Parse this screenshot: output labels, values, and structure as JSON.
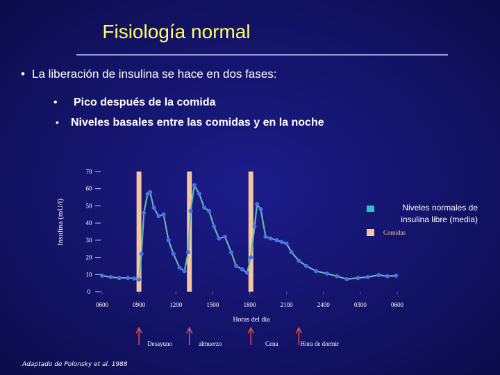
{
  "title": "Fisiología normal",
  "bullets": [
    "La liberación de insulina se hace en dos fases:",
    "Pico después de la comida",
    "Niveles basales entre las comidas y en la noche"
  ],
  "citation": "Adaptado de Polonsky et al. 1988",
  "chart_data": {
    "type": "line",
    "ylabel": "Insulina (mU/l)",
    "xlabel": "Horas del día",
    "ylim": [
      0,
      70
    ],
    "yticks": [
      0,
      10,
      20,
      30,
      40,
      50,
      60,
      70
    ],
    "xlim": [
      6,
      30
    ],
    "xticks": [
      {
        "value": 6,
        "label": "0600"
      },
      {
        "value": 9,
        "label": "0900"
      },
      {
        "value": 12,
        "label": "1200"
      },
      {
        "value": 15,
        "label": "1500"
      },
      {
        "value": 18,
        "label": "1800"
      },
      {
        "value": 21,
        "label": "2100"
      },
      {
        "value": 24,
        "label": "2400"
      },
      {
        "value": 27,
        "label": "0300"
      },
      {
        "value": 30,
        "label": "0600"
      }
    ],
    "series": [
      {
        "name": "Niveles normales de insulina libre (media)",
        "color": "#2ec4c4",
        "line_color": "#66b8a6",
        "point_color": "#4a6fe8",
        "x": [
          6.0,
          6.7,
          7.4,
          8.1,
          8.6,
          9.0,
          9.2,
          9.4,
          9.7,
          9.9,
          10.2,
          10.6,
          11.0,
          11.4,
          11.8,
          12.3,
          12.7,
          13.0,
          13.2,
          13.5,
          13.9,
          14.3,
          14.7,
          15.1,
          15.5,
          16.0,
          16.5,
          16.9,
          17.4,
          17.8,
          18.1,
          18.4,
          18.6,
          18.9,
          19.3,
          19.7,
          20.2,
          20.6,
          21.0,
          21.4,
          22.0,
          22.6,
          23.4,
          24.3,
          25.1,
          25.9,
          26.8,
          27.6,
          28.5,
          29.2,
          29.9
        ],
        "values": [
          9.3,
          8.5,
          8,
          8,
          7.7,
          7,
          22,
          46,
          57,
          58,
          49,
          44,
          45,
          30,
          22,
          14,
          12,
          23,
          47,
          62,
          57,
          49,
          47,
          38,
          31,
          32,
          23,
          15,
          13,
          11,
          20,
          38,
          51,
          48,
          32,
          31,
          30,
          29,
          28,
          23,
          18,
          15,
          12,
          10.5,
          9,
          7.3,
          8,
          8.5,
          9.7,
          9,
          9.3
        ]
      }
    ],
    "meals": {
      "name": "Comidas",
      "color": "#f5c6a0",
      "x": [
        9.0,
        13.1,
        18.1
      ]
    },
    "annotations": [
      {
        "text": "Desayuno",
        "x": 9.0
      },
      {
        "text": "almuerzo",
        "x": 13.1
      },
      {
        "text": "Cena",
        "x": 18.1
      },
      {
        "text": "Hora de dormir",
        "x": 22.0
      }
    ]
  }
}
